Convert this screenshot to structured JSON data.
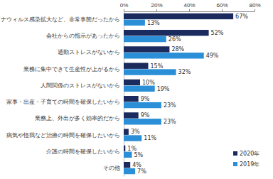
{
  "chart_data": {
    "type": "bar",
    "orientation": "horizontal",
    "categories": [
      "コロナウィルス感染拡大など、非常事態だったから",
      "会社からの指示があったから",
      "通勤ストレスがないから",
      "業務に集中できて生産性が上がるから",
      "人間関係のストレスがないから",
      "家事・出産・子育ての時間を確保したいから",
      "業務上、外出が多く効率的だから",
      "病気や怪我など治療の時間を確保したいから",
      "介護の時間を確保したいから",
      "その他"
    ],
    "series": [
      {
        "name": "2020年",
        "color": "#1c2b5e",
        "values": [
          67,
          52,
          28,
          15,
          10,
          9,
          9,
          3,
          1,
          4
        ],
        "value_labels": [
          "67%",
          "52%",
          "28%",
          "15%",
          "10%",
          "9%",
          "9%",
          "3%",
          "1%",
          "4%"
        ]
      },
      {
        "name": "2019年",
        "color": "#2a8fd7",
        "values": [
          13,
          26,
          49,
          32,
          19,
          23,
          23,
          11,
          5,
          7
        ],
        "value_labels": [
          "13%",
          "26%",
          "49%",
          "32%",
          "19%",
          "23%",
          "23%",
          "11%",
          "5%",
          "7%"
        ]
      }
    ],
    "xlim": [
      0,
      80
    ],
    "xticks": [
      {
        "value": 0,
        "label": "0%"
      },
      {
        "value": 20,
        "label": "20%"
      },
      {
        "value": 40,
        "label": "40%"
      },
      {
        "value": 60,
        "label": "60%"
      },
      {
        "value": 80,
        "label": "80%"
      }
    ],
    "grid": false,
    "data_labels": true,
    "legend": "lower right"
  }
}
